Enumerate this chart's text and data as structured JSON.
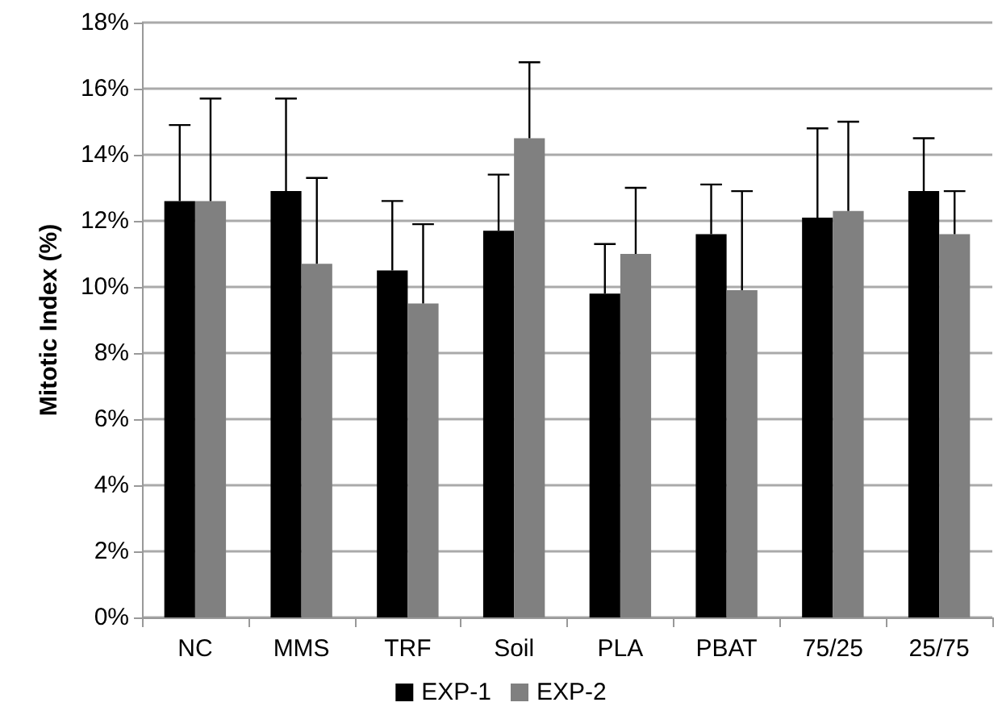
{
  "chart_data": {
    "type": "bar",
    "ylabel": "Mitotic Index (%)",
    "categories": [
      "NC",
      "MMS",
      "TRF",
      "Soil",
      "PLA",
      "PBAT",
      "75/25",
      "25/75"
    ],
    "series": [
      {
        "name": "EXP-1",
        "color": "#000000",
        "values": [
          12.6,
          12.9,
          10.5,
          11.7,
          9.8,
          11.6,
          12.1,
          12.9
        ],
        "errors": [
          [
            12.6,
            14.9
          ],
          [
            12.9,
            15.7
          ],
          [
            10.5,
            12.6
          ],
          [
            11.7,
            13.4
          ],
          [
            9.8,
            11.3
          ],
          [
            11.6,
            13.1
          ],
          [
            12.1,
            14.8
          ],
          [
            12.9,
            14.5
          ]
        ]
      },
      {
        "name": "EXP-2",
        "color": "#808080",
        "values": [
          12.6,
          10.7,
          9.5,
          14.5,
          11.0,
          9.9,
          12.3,
          11.6
        ],
        "errors": [
          [
            12.6,
            15.7
          ],
          [
            10.7,
            13.3
          ],
          [
            9.5,
            11.9
          ],
          [
            14.5,
            16.8
          ],
          [
            11.0,
            13.0
          ],
          [
            9.9,
            12.9
          ],
          [
            12.3,
            15.0
          ],
          [
            11.6,
            12.9
          ]
        ]
      }
    ],
    "ylim": [
      0,
      18
    ],
    "yticks": [
      {
        "value": 0,
        "label": "0%"
      },
      {
        "value": 2,
        "label": "2%"
      },
      {
        "value": 4,
        "label": "4%"
      },
      {
        "value": 6,
        "label": "6%"
      },
      {
        "value": 8,
        "label": "8%"
      },
      {
        "value": 10,
        "label": "10%"
      },
      {
        "value": 12,
        "label": "12%"
      },
      {
        "value": 14,
        "label": "14%"
      },
      {
        "value": 16,
        "label": "16%"
      },
      {
        "value": 18,
        "label": "18%"
      }
    ],
    "grid": "y",
    "legend": "bottom"
  }
}
